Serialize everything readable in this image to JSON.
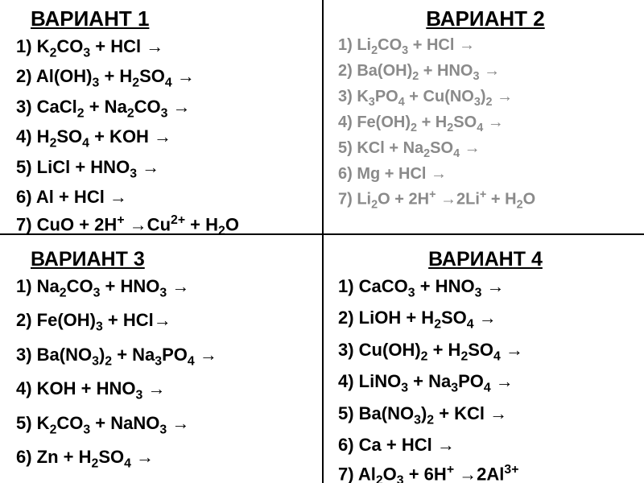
{
  "variants": [
    {
      "title": "ВАРИАНТ 1",
      "title_fontsize": 26,
      "title_color": "#000000",
      "line_fontsize": 22,
      "line_color": "#000000",
      "line_spacing": 7,
      "lines": [
        "1) K<sub>2</sub>CO<sub>3</sub> + HCl →",
        "2) Al(OH)<sub>3</sub> + H<sub>2</sub>SO<sub>4</sub> →",
        "3) CaCl<sub>2</sub> + Na<sub>2</sub>CO<sub>3</sub> →",
        "4) H<sub>2</sub>SO<sub>4</sub> + KOH →",
        "5) LiCl + HNO<sub>3</sub> →",
        "6) Al + HCl →",
        "7) СuO + 2H<sup>+</sup> →Cu<sup>2+</sup> + H<sub>2</sub>O"
      ]
    },
    {
      "title": "ВАРИАНТ 2",
      "title_fontsize": 26,
      "title_color": "#000000",
      "line_fontsize": 20,
      "line_color": "#8a8a8a",
      "line_spacing": 6,
      "lines": [
        "1) Li<sub>2</sub>CO<sub>3</sub> + HCl →",
        "2) Ba(OH)<sub>2</sub> + HNO<sub>3</sub> →",
        "3) K<sub>3</sub>PO<sub>4</sub> + Cu(NO<sub>3</sub>)<sub>2</sub> →",
        "4) Fe(OH)<sub>2</sub>  + H<sub>2</sub>SO<sub>4</sub> →",
        "5) KCl + Na<sub>2</sub>SO<sub>4</sub> →",
        "6) Mg + HCl →",
        "7) Li<sub>2</sub>O + 2H<sup>+</sup> →2Li<sup>+</sup> + H<sub>2</sub>O"
      ]
    },
    {
      "title": "ВАРИАНТ 3",
      "title_fontsize": 25,
      "title_color": "#000000",
      "line_fontsize": 22,
      "line_color": "#000000",
      "line_spacing": 12,
      "lines": [
        "1) Na<sub>2</sub>CO<sub>3</sub> + HNO<sub>3</sub> →",
        "2) Fe(OH)<sub>3</sub> + HCl→",
        "3) Ba(NO<sub>3</sub>)<sub>2</sub> + Na<sub>3</sub>PO<sub>4</sub> →",
        "4) KOH + HNO<sub>3</sub> →",
        "5) K<sub>2</sub>CO<sub>3</sub> + NaNO<sub>3</sub> →",
        "6) Zn + H<sub>2</sub>SO<sub>4</sub> →"
      ]
    },
    {
      "title": "ВАРИАНТ 4",
      "title_fontsize": 25,
      "title_color": "#000000",
      "line_fontsize": 22,
      "line_color": "#000000",
      "line_spacing": 9,
      "lines": [
        "1) CaCO<sub>3</sub> + HNO<sub>3</sub> →",
        "2) LiOH + H<sub>2</sub>SO<sub>4</sub> →",
        "3) Cu(OH)<sub>2</sub> + H<sub>2</sub>SO<sub>4</sub> →",
        "4) LiNO<sub>3</sub> + Na<sub>3</sub>PO<sub>4</sub> →",
        "5) Ba(NO<sub>3</sub>)<sub>2</sub> + KCl →",
        "6) Ca + HCl →",
        "7) Al<sub>2</sub>O<sub>3</sub> + 6H<sup>+</sup> →2Al<sup>3+</sup>"
      ]
    }
  ],
  "divider_color": "#000000",
  "background_color": "#ffffff"
}
